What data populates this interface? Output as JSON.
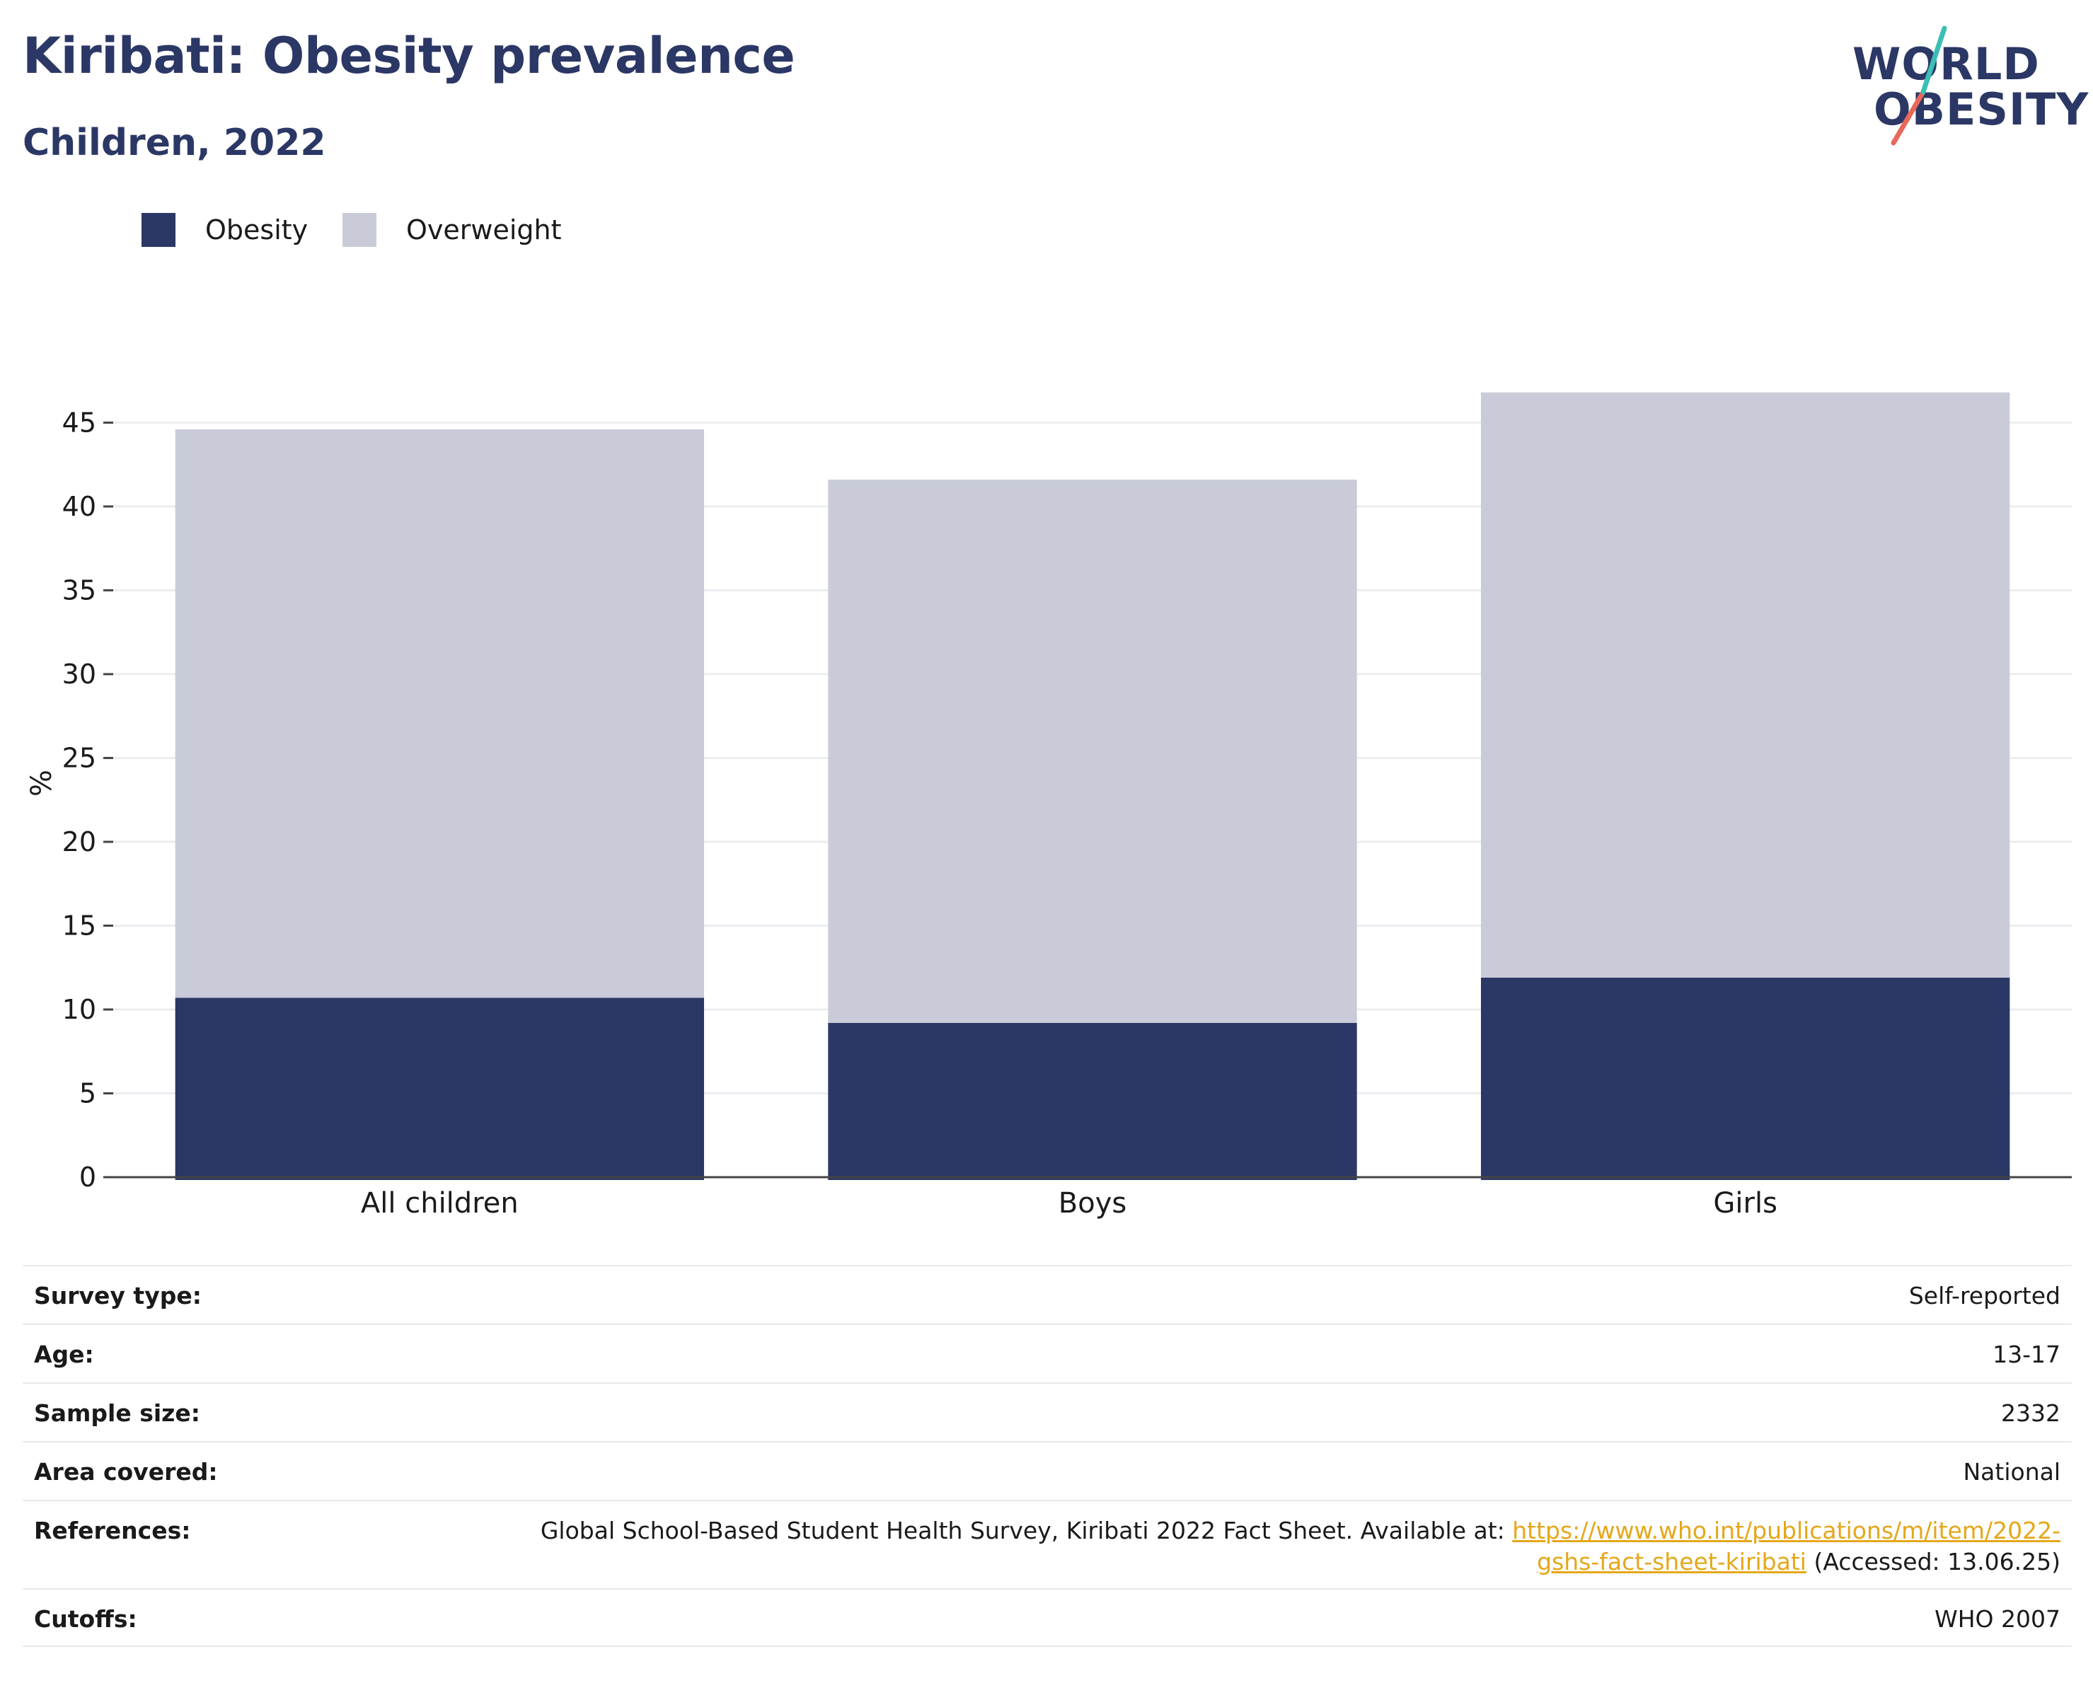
{
  "header": {
    "title": "Kiribati: Obesity prevalence",
    "subtitle": "Children, 2022"
  },
  "logo": {
    "line1": "WORLD",
    "line2": "OBESITY",
    "slash_colors": [
      "#3bbfb4",
      "#e8685a"
    ]
  },
  "legend": [
    {
      "label": "Obesity",
      "color": "#2b3765"
    },
    {
      "label": "Overweight",
      "color": "#c9ccd8"
    }
  ],
  "chart_data": {
    "type": "bar",
    "stacked": true,
    "categories": [
      "All children",
      "Boys",
      "Girls"
    ],
    "series": [
      {
        "name": "Obesity",
        "color": "#2b3765",
        "values": [
          10.7,
          9.2,
          11.9
        ]
      },
      {
        "name": "Overweight",
        "color": "#c9ccd8",
        "values": [
          33.9,
          32.4,
          34.9
        ]
      }
    ],
    "totals": [
      44.6,
      41.6,
      46.8
    ],
    "ylabel": "%",
    "xlabel": "",
    "ylim": [
      0,
      47
    ],
    "yticks": [
      0,
      5,
      10,
      15,
      20,
      25,
      30,
      35,
      40,
      45
    ],
    "grid": true,
    "legend_position": "top-left"
  },
  "meta": {
    "survey_type": {
      "label": "Survey type:",
      "value": "Self-reported"
    },
    "age": {
      "label": "Age:",
      "value": "13-17"
    },
    "sample_size": {
      "label": "Sample size:",
      "value": "2332"
    },
    "area": {
      "label": "Area covered:",
      "value": "National"
    },
    "references": {
      "label": "References:",
      "text": "Global School-Based Student Health Survey, Kiribati 2022 Fact Sheet. Available at: ",
      "link_part1": "https://www.who.int/publications/m/item/2022-",
      "link_part2": "gshs-fact-sheet-kiribati",
      "accessed": " (Accessed: 13.06.25)"
    },
    "cutoffs": {
      "label": "Cutoffs:",
      "value": "WHO 2007"
    }
  }
}
